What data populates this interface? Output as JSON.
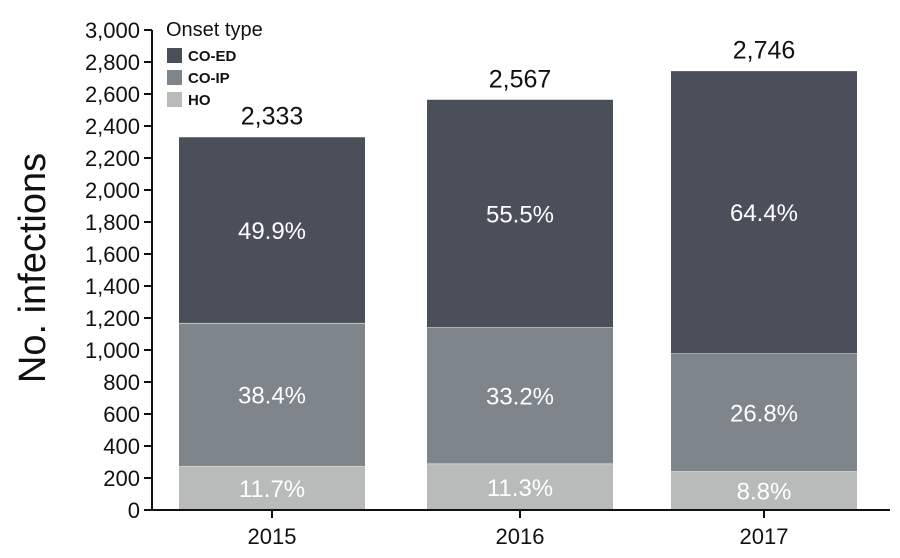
{
  "chart_data": {
    "type": "bar",
    "stacked": true,
    "categories": [
      "2015",
      "2016",
      "2017"
    ],
    "ylabel": "No. infections",
    "xlabel": "",
    "ylim": [
      0,
      3000
    ],
    "yticks": [
      0,
      200,
      400,
      600,
      800,
      1000,
      1200,
      1400,
      1600,
      1800,
      2000,
      2200,
      2400,
      2600,
      2800,
      3000
    ],
    "ytick_labels": [
      "0",
      "200",
      "400",
      "600",
      "800",
      "1,000",
      "1,200",
      "1,400",
      "1,600",
      "1,800",
      "2,000",
      "2,200",
      "2,400",
      "2,600",
      "2,800",
      "3,000"
    ],
    "totals": [
      2333,
      2567,
      2746
    ],
    "total_labels": [
      "2,333",
      "2,567",
      "2,746"
    ],
    "legend": {
      "title": "Onset type",
      "placement": "top-left"
    },
    "grid": false,
    "series": [
      {
        "name": "HO",
        "color": "#b9bbbb",
        "values": [
          273,
          290,
          242
        ],
        "labels": [
          "11.7%",
          "11.3%",
          "8.8%"
        ]
      },
      {
        "name": "CO-IP",
        "color": "#7f868b",
        "values": [
          896,
          852,
          736
        ],
        "labels": [
          "38.4%",
          "33.2%",
          "26.8%"
        ]
      },
      {
        "name": "CO-ED",
        "color": "#4a4f59",
        "values": [
          1164,
          1425,
          1768
        ],
        "labels": [
          "49.9%",
          "55.5%",
          "64.4%"
        ]
      }
    ],
    "legend_order": [
      "CO-ED",
      "CO-IP",
      "HO"
    ]
  }
}
